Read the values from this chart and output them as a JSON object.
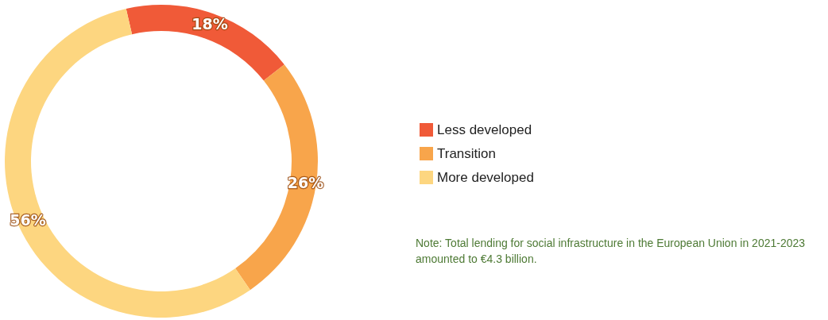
{
  "chart_data": {
    "type": "donut",
    "categories": [
      "Less developed",
      "Transition",
      "More developed"
    ],
    "values": [
      18,
      26,
      56
    ],
    "colors": [
      "#f05a38",
      "#f8a54b",
      "#fdd680"
    ],
    "value_labels": [
      "18%",
      "26%",
      "56%"
    ],
    "legend": "right",
    "annotations": [
      "Note: Total lending for social infrastructure in the European Union in 2021-2023 amounted to €4.3 billion."
    ]
  }
}
